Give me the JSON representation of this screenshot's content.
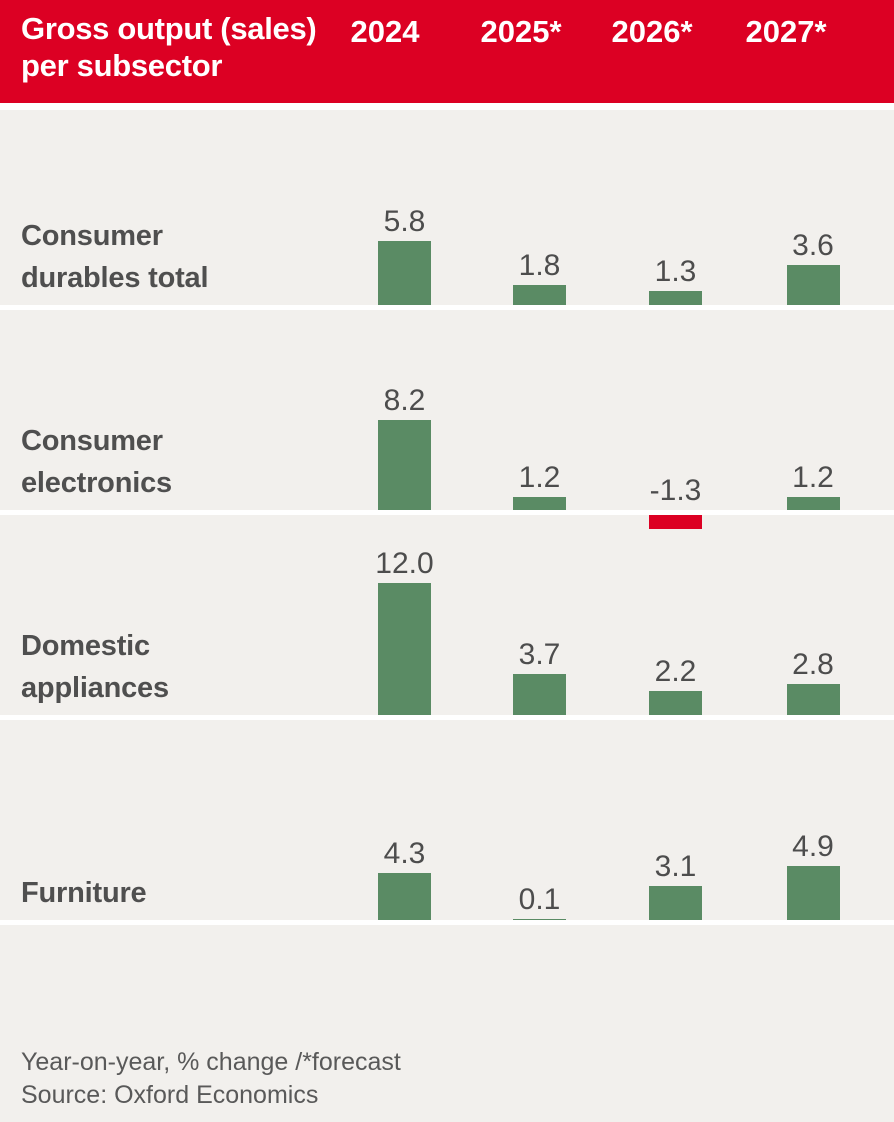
{
  "header": {
    "title": "Gross output (sales) per subsector",
    "title_lines": [
      "Gross output (sales)",
      "per subsector"
    ],
    "columns": [
      "2024",
      "2025*",
      "2026*",
      "2027*"
    ]
  },
  "footer": {
    "footnote": "Year-on-year, % change /*forecast",
    "source": "Source: Oxford Economics"
  },
  "colors": {
    "header_bg": "#dc0023",
    "positive_bar": "#5a8b64",
    "negative_bar": "#dc0023",
    "background": "#f2f0ed",
    "divider": "#ffffff",
    "label_text": "#4f4f4f",
    "value_text": "#4d4d4d",
    "footer_text": "#595959"
  },
  "chart_data": {
    "type": "bar",
    "title": "Gross output (sales) per subsector",
    "categories": [
      "2024",
      "2025*",
      "2026*",
      "2027*"
    ],
    "series": [
      {
        "name": "Consumer durables total",
        "values": [
          5.8,
          1.8,
          1.3,
          3.6
        ],
        "display": [
          "5.8",
          "1.8",
          "1.3",
          "3.6"
        ]
      },
      {
        "name": "Consumer electronics",
        "values": [
          8.2,
          1.2,
          -1.3,
          1.2
        ],
        "display": [
          "8.2",
          "1.2",
          "-1.3",
          "1.2"
        ]
      },
      {
        "name": "Domestic appliances",
        "values": [
          12.0,
          3.7,
          2.2,
          2.8
        ],
        "display": [
          "12.0",
          "3.7",
          "2.2",
          "2.8"
        ]
      },
      {
        "name": "Furniture",
        "values": [
          4.3,
          0.1,
          3.1,
          4.9
        ],
        "display": [
          "4.3",
          "0.1",
          "3.1",
          "4.9"
        ]
      }
    ],
    "row_label_lines": [
      [
        "Consumer",
        "durables total"
      ],
      [
        "Consumer",
        "electronics"
      ],
      [
        "Domestic",
        "appliances"
      ],
      [
        "Furniture"
      ]
    ],
    "ylabel": "Year-on-year % change",
    "footnote": "Year-on-year, % change /*forecast",
    "source": "Source: Oxford Economics",
    "legend_position": "none",
    "grid": false,
    "bar_color_positive": "#5a8b64",
    "bar_color_negative": "#dc0023"
  }
}
